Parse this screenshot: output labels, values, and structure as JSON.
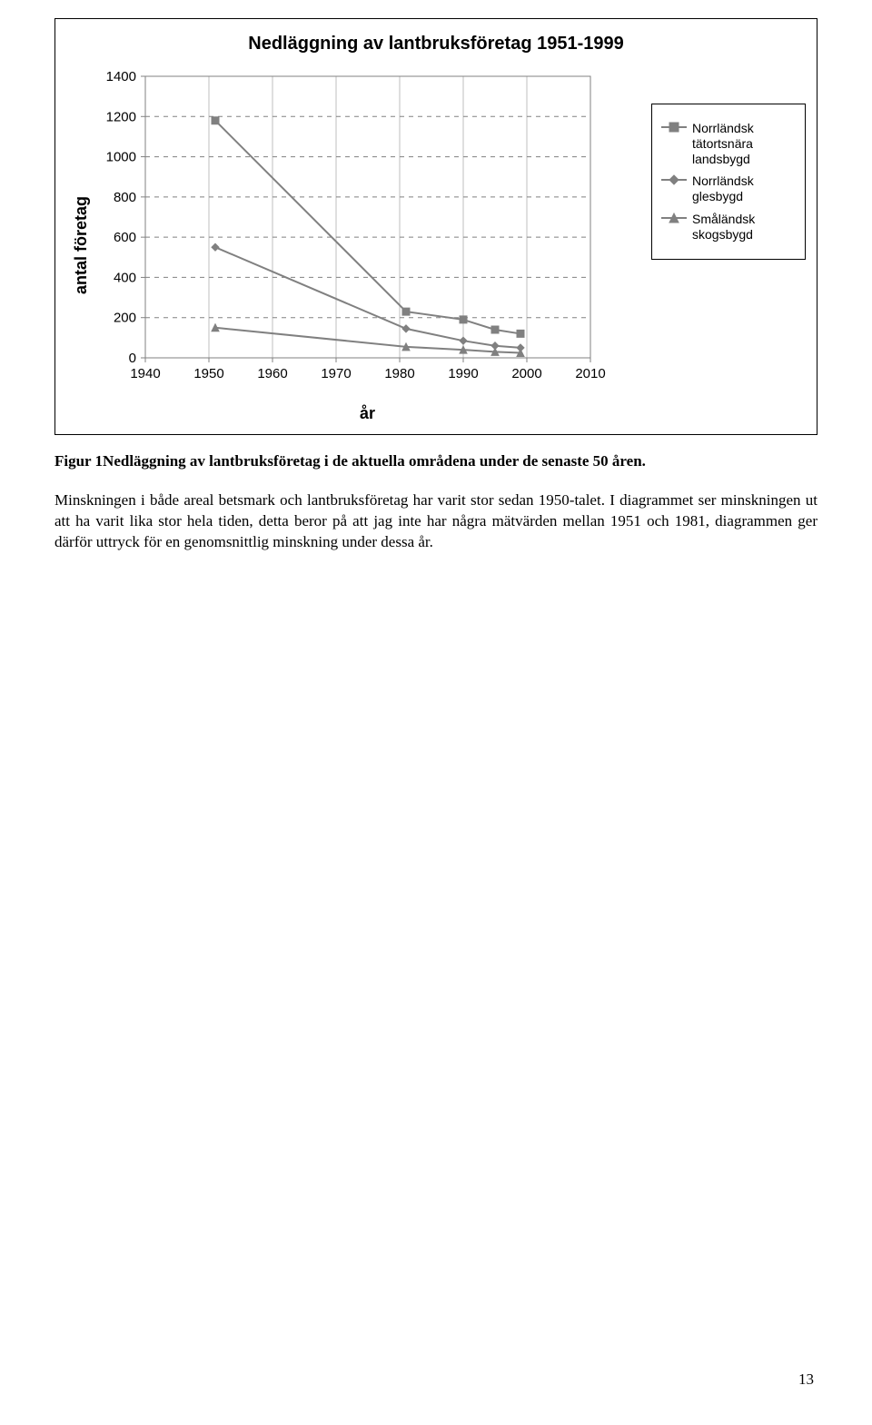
{
  "chart": {
    "type": "line-scatter",
    "title": "Nedläggning av lantbruksföretag 1951-1999",
    "xlabel": "år",
    "ylabel": "antal företag",
    "title_fontsize": 20,
    "label_fontsize": 18,
    "tick_fontsize": 15,
    "xlim": [
      1940,
      2010
    ],
    "ylim": [
      0,
      1400
    ],
    "xticks": [
      1940,
      1950,
      1960,
      1970,
      1980,
      1990,
      2000,
      2010
    ],
    "yticks": [
      0,
      200,
      400,
      600,
      800,
      1000,
      1200,
      1400
    ],
    "grid": {
      "x_major": true,
      "y_dashed": true,
      "dash": "5,5",
      "color": "#808080",
      "axis_color": "#808080"
    },
    "plot_border": "#808080",
    "plot_bg": "#ffffff",
    "line_color": "#808080",
    "line_width": 2,
    "marker_edge": "#808080",
    "marker_fill": "#808080",
    "marker_size": 8,
    "series": [
      {
        "key": "tatort",
        "label": "Norrländsk tätortsnära landsbygd",
        "marker": "square",
        "x": [
          1951,
          1981,
          1990,
          1995,
          1999
        ],
        "y": [
          1180,
          230,
          190,
          140,
          120
        ]
      },
      {
        "key": "glesbygd",
        "label": "Norrländsk glesbygd",
        "marker": "diamond",
        "x": [
          1951,
          1981,
          1990,
          1995,
          1999
        ],
        "y": [
          550,
          145,
          85,
          60,
          50
        ]
      },
      {
        "key": "skogsbygd",
        "label": "Småländsk skogsbygd",
        "marker": "triangle",
        "x": [
          1951,
          1981,
          1990,
          1995,
          1999
        ],
        "y": [
          150,
          55,
          40,
          30,
          25
        ]
      }
    ],
    "legend": {
      "border": "#000000",
      "bg": "#ffffff",
      "fontsize": 14
    }
  },
  "caption": "Figur 1Nedläggning av lantbruksföretag i de aktuella områdena under de senaste 50 åren.",
  "body": "Minskningen i både areal betsmark och lantbruksföretag har varit stor sedan 1950-talet. I diagrammet ser minskningen ut att ha varit lika stor hela tiden, detta beror på att jag inte har några mätvärden mellan 1951 och 1981, diagrammen ger därför uttryck för en genomsnittlig minskning under dessa år.",
  "page_number": "13"
}
